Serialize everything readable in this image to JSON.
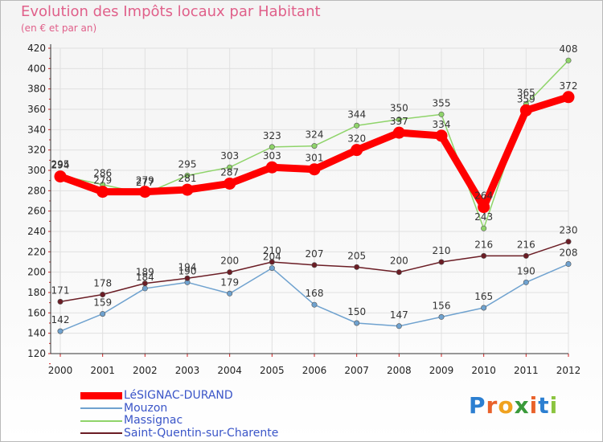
{
  "title": "Evolution des Impôts locaux par Habitant",
  "subtitle": "(en € et par an)",
  "colors": {
    "title": "#e0608a",
    "legend_text": "#3a55c8"
  },
  "logo": {
    "letters": [
      "P",
      "r",
      "o",
      "x",
      "i",
      "t",
      "i"
    ],
    "colors": [
      "#2c7fd1",
      "#e9622b",
      "#f0a21f",
      "#3a9a3a",
      "#e9622b",
      "#2c7fd1",
      "#8bc43f"
    ]
  },
  "chart_data": {
    "type": "line",
    "title": "Evolution des Impôts locaux par Habitant",
    "subtitle": "(en € et par an)",
    "xlabel": "",
    "ylabel": "",
    "ylim": [
      120,
      420
    ],
    "yticks": [
      120,
      140,
      160,
      180,
      200,
      220,
      240,
      260,
      280,
      300,
      320,
      340,
      360,
      380,
      400,
      420
    ],
    "categories": [
      "2000",
      "2001",
      "2002",
      "2003",
      "2004",
      "2005",
      "2006",
      "2007",
      "2008",
      "2009",
      "2010",
      "2011",
      "2012"
    ],
    "series": [
      {
        "name": "Mouzon",
        "color": "#6fa2cf",
        "values": [
          142,
          159,
          184,
          190,
          179,
          204,
          168,
          150,
          147,
          156,
          165,
          190,
          208
        ]
      },
      {
        "name": "Saint-Quentin-sur-Charente",
        "color": "#6b1d25",
        "values": [
          171,
          178,
          189,
          194,
          200,
          210,
          207,
          205,
          200,
          210,
          216,
          216,
          230
        ]
      },
      {
        "name": "Massignac",
        "color": "#8fd46a",
        "values": [
          295,
          286,
          277,
          295,
          303,
          323,
          324,
          344,
          350,
          355,
          243,
          365,
          408
        ]
      },
      {
        "name": "LéSIGNAC-DURAND",
        "color": "#ff0000",
        "values": [
          294,
          279,
          279,
          281,
          287,
          303,
          301,
          320,
          337,
          334,
          264,
          359,
          372
        ]
      }
    ],
    "legend": [
      "LéSIGNAC-DURAND",
      "Mouzon",
      "Massignac",
      "Saint-Quentin-sur-Charente"
    ],
    "legend_position": "bottom-left"
  }
}
